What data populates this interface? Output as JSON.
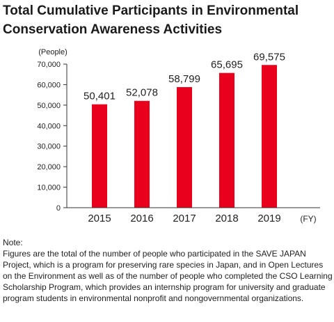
{
  "title_lines": [
    "Total Cumulative Participants in Environmental",
    "Conservation Awareness Activities"
  ],
  "chart_data": {
    "type": "bar",
    "categories": [
      "2015",
      "2016",
      "2017",
      "2018",
      "2019"
    ],
    "values": [
      50401,
      52078,
      58799,
      65695,
      69575
    ],
    "value_labels": [
      "50,401",
      "52,078",
      "58,799",
      "65,695",
      "69,575"
    ],
    "ylabel": "(People)",
    "xlabel": "(FY)",
    "ylim": [
      0,
      70000
    ],
    "yticks": [
      0,
      10000,
      20000,
      30000,
      40000,
      50000,
      60000,
      70000
    ],
    "ytick_labels": [
      "0",
      "10,000",
      "20,000",
      "30,000",
      "40,000",
      "50,000",
      "60,000",
      "70,000"
    ],
    "bar_color": "#e8001c",
    "grid": false,
    "legend": "none"
  },
  "note": {
    "heading": "Note:",
    "body": "Figures are the total of the number of people who participated in the SAVE JAPAN Project, which is a program for preserving rare species in Japan, and in Open Lectures on the Environment as well as of the number of people who completed the CSO Learning Scholarship Program, which provides an internship program for university and graduate program students in environmental nonprofit and nongovernmental organizations."
  }
}
